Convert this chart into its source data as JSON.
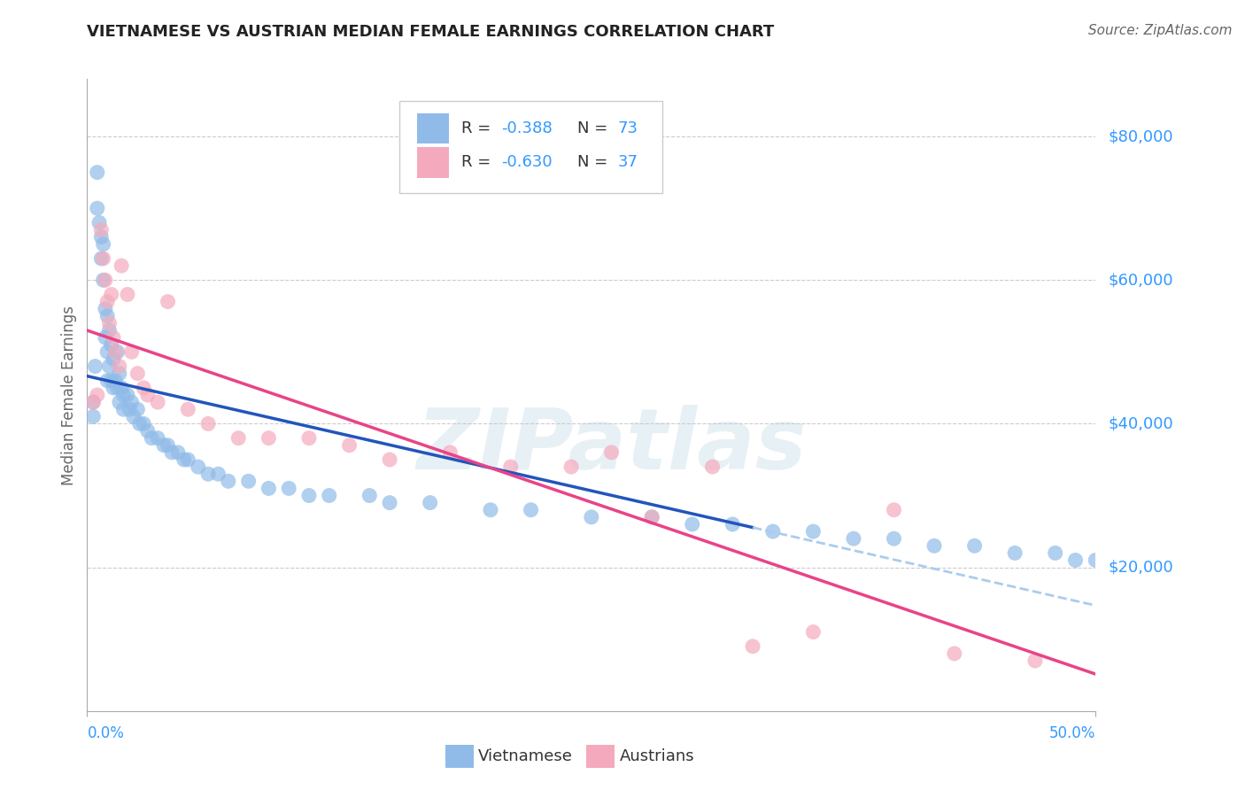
{
  "title": "VIETNAMESE VS AUSTRIAN MEDIAN FEMALE EARNINGS CORRELATION CHART",
  "source_text": "Source: ZipAtlas.com",
  "ylabel": "Median Female Earnings",
  "watermark": "ZIPatlas",
  "legend_blue_r": "-0.388",
  "legend_blue_n": "73",
  "legend_pink_r": "-0.630",
  "legend_pink_n": "37",
  "legend_label_blue": "Vietnamese",
  "legend_label_pink": "Austrians",
  "color_blue_scatter": "#90BBE8",
  "color_pink_scatter": "#F4AABC",
  "color_blue_line": "#2255BB",
  "color_pink_line": "#E84488",
  "color_blue_dashed": "#AACCEE",
  "color_axis_labels": "#3399FF",
  "color_title": "#222222",
  "color_source": "#666666",
  "ytick_values": [
    80000,
    60000,
    40000,
    20000
  ],
  "ytick_labels": [
    "$80,000",
    "$60,000",
    "$40,000",
    "$20,000"
  ],
  "xlim_min": 0.0,
  "xlim_max": 0.5,
  "ylim_min": 0,
  "ylim_max": 88000,
  "blue_x": [
    0.003,
    0.003,
    0.004,
    0.005,
    0.005,
    0.006,
    0.007,
    0.007,
    0.008,
    0.008,
    0.009,
    0.009,
    0.01,
    0.01,
    0.01,
    0.011,
    0.011,
    0.012,
    0.012,
    0.013,
    0.013,
    0.014,
    0.015,
    0.015,
    0.016,
    0.016,
    0.017,
    0.018,
    0.018,
    0.02,
    0.021,
    0.022,
    0.023,
    0.025,
    0.026,
    0.028,
    0.03,
    0.032,
    0.035,
    0.038,
    0.04,
    0.042,
    0.045,
    0.048,
    0.05,
    0.055,
    0.06,
    0.065,
    0.07,
    0.08,
    0.09,
    0.1,
    0.11,
    0.12,
    0.14,
    0.15,
    0.17,
    0.2,
    0.22,
    0.25,
    0.28,
    0.3,
    0.32,
    0.34,
    0.36,
    0.38,
    0.4,
    0.42,
    0.44,
    0.46,
    0.48,
    0.49,
    0.5
  ],
  "blue_y": [
    43000,
    41000,
    48000,
    75000,
    70000,
    68000,
    66000,
    63000,
    65000,
    60000,
    56000,
    52000,
    55000,
    50000,
    46000,
    53000,
    48000,
    51000,
    46000,
    49000,
    45000,
    46000,
    50000,
    45000,
    47000,
    43000,
    45000,
    44000,
    42000,
    44000,
    42000,
    43000,
    41000,
    42000,
    40000,
    40000,
    39000,
    38000,
    38000,
    37000,
    37000,
    36000,
    36000,
    35000,
    35000,
    34000,
    33000,
    33000,
    32000,
    32000,
    31000,
    31000,
    30000,
    30000,
    30000,
    29000,
    29000,
    28000,
    28000,
    27000,
    27000,
    26000,
    26000,
    25000,
    25000,
    24000,
    24000,
    23000,
    23000,
    22000,
    22000,
    21000,
    21000
  ],
  "pink_x": [
    0.003,
    0.005,
    0.007,
    0.008,
    0.009,
    0.01,
    0.011,
    0.012,
    0.013,
    0.014,
    0.016,
    0.017,
    0.02,
    0.022,
    0.025,
    0.028,
    0.03,
    0.035,
    0.04,
    0.05,
    0.06,
    0.075,
    0.09,
    0.11,
    0.13,
    0.15,
    0.18,
    0.21,
    0.24,
    0.26,
    0.28,
    0.31,
    0.33,
    0.36,
    0.4,
    0.43,
    0.47
  ],
  "pink_y": [
    43000,
    44000,
    67000,
    63000,
    60000,
    57000,
    54000,
    58000,
    52000,
    50000,
    48000,
    62000,
    58000,
    50000,
    47000,
    45000,
    44000,
    43000,
    57000,
    42000,
    40000,
    38000,
    38000,
    38000,
    37000,
    35000,
    36000,
    34000,
    34000,
    36000,
    27000,
    34000,
    9000,
    11000,
    28000,
    8000,
    7000
  ]
}
